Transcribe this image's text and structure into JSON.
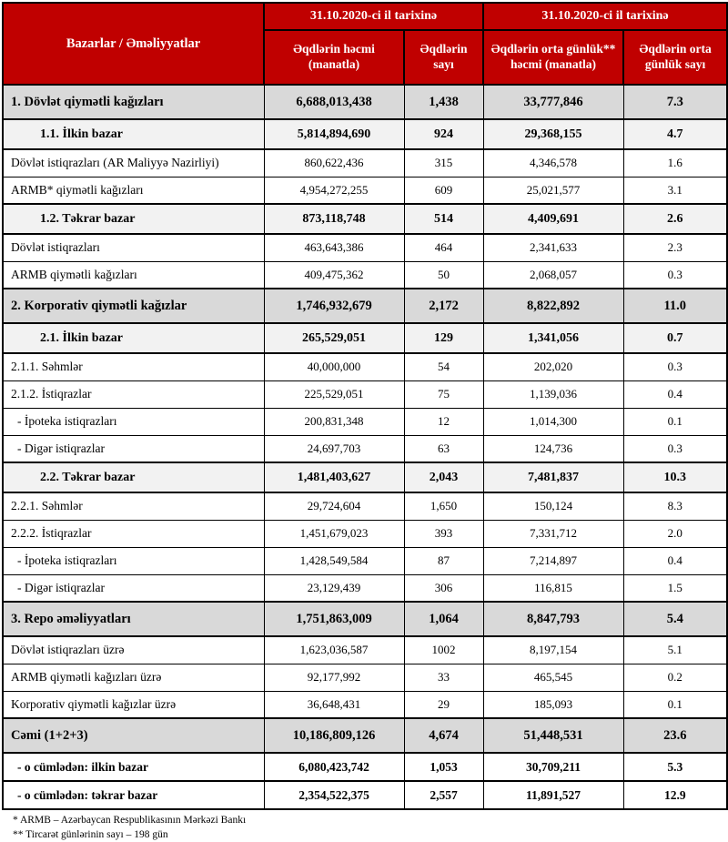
{
  "colors": {
    "header_bg": "#C00000",
    "header_text": "#FFFFFF",
    "section_row_bg": "#D9D9D9",
    "subsection_row_bg": "#F2F2F2",
    "border": "#000000"
  },
  "table": {
    "corner_header": "Bazarlar / Əməliyyatlar",
    "group_headers": [
      "31.10.2020-ci il tarixinə",
      "31.10.2020-ci il tarixinə"
    ],
    "col_headers": [
      "Əqdlərin həcmi (manatla)",
      "Əqdlərin sayı",
      "Əqdlərin orta günlük** həcmi (manatla)",
      "Əqdlərin orta günlük sayı"
    ],
    "rows": [
      {
        "label": "1. Dövlət qiymətli kağızları",
        "style": "section",
        "values": [
          "6,688,013,438",
          "1,438",
          "33,777,846",
          "7.3"
        ]
      },
      {
        "label": "1.1. İlkin bazar",
        "style": "sub",
        "values": [
          "5,814,894,690",
          "924",
          "29,368,155",
          "4.7"
        ]
      },
      {
        "label": "Dövlət istiqrazları (AR Maliyyə Nazirliyi)",
        "style": "item",
        "values": [
          "860,622,436",
          "315",
          "4,346,578",
          "1.6"
        ]
      },
      {
        "label": "ARMB* qiymətli kağızları",
        "style": "item",
        "values": [
          "4,954,272,255",
          "609",
          "25,021,577",
          "3.1"
        ]
      },
      {
        "label": "1.2. Təkrar bazar",
        "style": "sub",
        "values": [
          "873,118,748",
          "514",
          "4,409,691",
          "2.6"
        ]
      },
      {
        "label": "Dövlət istiqrazları",
        "style": "item",
        "values": [
          "463,643,386",
          "464",
          "2,341,633",
          "2.3"
        ]
      },
      {
        "label": "ARMB qiymətli kağızları",
        "style": "item",
        "values": [
          "409,475,362",
          "50",
          "2,068,057",
          "0.3"
        ]
      },
      {
        "label": "2. Korporativ qiymətli kağızlar",
        "style": "section",
        "values": [
          "1,746,932,679",
          "2,172",
          "8,822,892",
          "11.0"
        ]
      },
      {
        "label": "2.1. İlkin bazar",
        "style": "sub",
        "values": [
          "265,529,051",
          "129",
          "1,341,056",
          "0.7"
        ]
      },
      {
        "label": "2.1.1. Səhmlər",
        "style": "item",
        "values": [
          "40,000,000",
          "54",
          "202,020",
          "0.3"
        ]
      },
      {
        "label": "2.1.2. İstiqrazlar",
        "style": "item",
        "values": [
          "225,529,051",
          "75",
          "1,139,036",
          "0.4"
        ]
      },
      {
        "label": "- İpoteka istiqrazları",
        "style": "dash",
        "values": [
          "200,831,348",
          "12",
          "1,014,300",
          "0.1"
        ]
      },
      {
        "label": "- Digər istiqrazlar",
        "style": "dash",
        "values": [
          "24,697,703",
          "63",
          "124,736",
          "0.3"
        ]
      },
      {
        "label": "2.2. Təkrar bazar",
        "style": "sub",
        "values": [
          "1,481,403,627",
          "2,043",
          "7,481,837",
          "10.3"
        ]
      },
      {
        "label": "2.2.1. Səhmlər",
        "style": "item",
        "values": [
          "29,724,604",
          "1,650",
          "150,124",
          "8.3"
        ]
      },
      {
        "label": "2.2.2. İstiqrazlar",
        "style": "item",
        "values": [
          "1,451,679,023",
          "393",
          "7,331,712",
          "2.0"
        ]
      },
      {
        "label": "- İpoteka istiqrazları",
        "style": "dash",
        "values": [
          "1,428,549,584",
          "87",
          "7,214,897",
          "0.4"
        ]
      },
      {
        "label": "- Digər istiqrazlar",
        "style": "dash",
        "values": [
          "23,129,439",
          "306",
          "116,815",
          "1.5"
        ]
      },
      {
        "label": "3. Repo əməliyyatları",
        "style": "section",
        "values": [
          "1,751,863,009",
          "1,064",
          "8,847,793",
          "5.4"
        ]
      },
      {
        "label": "Dövlət istiqrazları üzrə",
        "style": "item",
        "values": [
          "1,623,036,587",
          "1002",
          "8,197,154",
          "5.1"
        ]
      },
      {
        "label": "ARMB qiymətli kağızları üzrə",
        "style": "item",
        "values": [
          "92,177,992",
          "33",
          "465,545",
          "0.2"
        ]
      },
      {
        "label": "Korporativ qiymətli kağızlar üzrə",
        "style": "item",
        "values": [
          "36,648,431",
          "29",
          "185,093",
          "0.1"
        ]
      },
      {
        "label": "Cəmi (1+2+3)",
        "style": "section",
        "values": [
          "10,186,809,126",
          "4,674",
          "51,448,531",
          "23.6"
        ]
      },
      {
        "label": "- o cümlədən: ilkin bazar",
        "style": "total-item",
        "values": [
          "6,080,423,742",
          "1,053",
          "30,709,211",
          "5.3"
        ]
      },
      {
        "label": "- o cümlədən: təkrar bazar",
        "style": "total-item",
        "values": [
          "2,354,522,375",
          "2,557",
          "11,891,527",
          "12.9"
        ]
      }
    ],
    "footnotes": [
      "* ARMB – Azərbaycan Respublikasının Mərkəzi Bankı",
      "** Tircarət günlərinin sayı – 198 gün"
    ]
  }
}
